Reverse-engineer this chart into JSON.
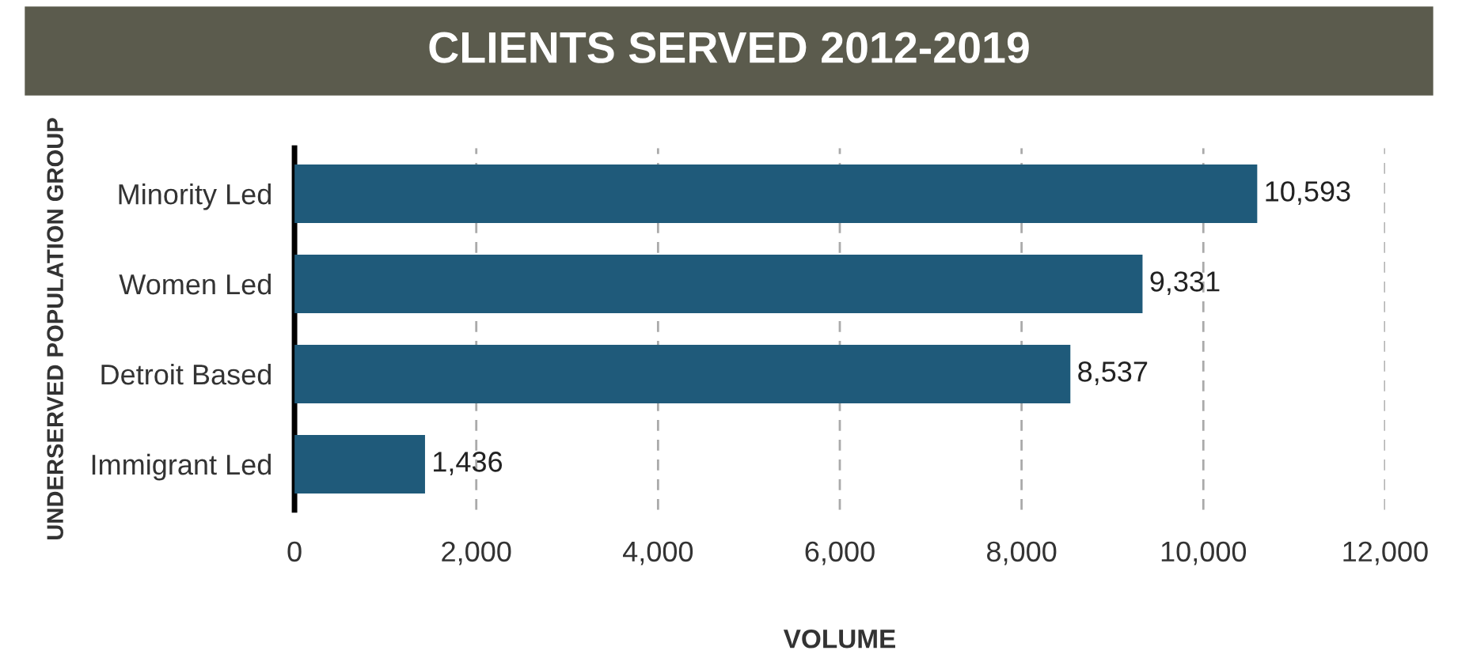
{
  "chart_data": {
    "type": "bar",
    "orientation": "horizontal",
    "title": "CLIENTS SERVED 2012-2019",
    "xlabel": "VOLUME",
    "ylabel": "UNDERSERVED POPULATION GROUP",
    "categories": [
      "Minority Led",
      "Women Led",
      "Detroit Based",
      "Immigrant Led"
    ],
    "values": [
      10593,
      9331,
      8537,
      1436
    ],
    "color": "#1f5a7a",
    "xlim": [
      0,
      12000
    ],
    "xticks": [
      {
        "value": 0,
        "label": "0"
      },
      {
        "value": 2000,
        "label": "2,000"
      },
      {
        "value": 4000,
        "label": "4,000"
      },
      {
        "value": 6000,
        "label": "6,000"
      },
      {
        "value": 8000,
        "label": "8,000"
      },
      {
        "value": 10000,
        "label": "10,000"
      },
      {
        "value": 12000,
        "label": "12,000"
      }
    ],
    "value_labels": [
      "10,593",
      "9,331",
      "8,537",
      "1,436"
    ],
    "grid": "x",
    "legend": false
  }
}
